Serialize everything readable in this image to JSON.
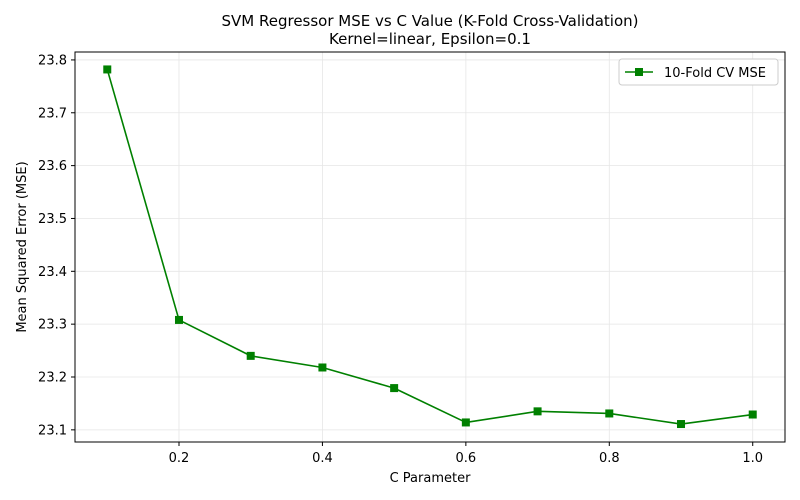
{
  "chart_data": {
    "type": "line",
    "title": "SVM Regressor MSE vs C Value (K-Fold Cross-Validation)",
    "subtitle": "Kernel=linear, Epsilon=0.1",
    "xlabel": "C Parameter",
    "ylabel": "Mean Squared Error (MSE)",
    "xlim": [
      0.055,
      1.045
    ],
    "ylim": [
      23.077,
      23.815
    ],
    "grid": true,
    "legend_position": "top-right",
    "x_ticks": [
      0.2,
      0.4,
      0.6,
      0.8,
      1.0
    ],
    "x_tick_labels": [
      "0.2",
      "0.4",
      "0.6",
      "0.8",
      "1.0"
    ],
    "y_ticks": [
      23.1,
      23.2,
      23.3,
      23.4,
      23.5,
      23.6,
      23.7,
      23.8
    ],
    "y_tick_labels": [
      "23.1",
      "23.2",
      "23.3",
      "23.4",
      "23.5",
      "23.6",
      "23.7",
      "23.8"
    ],
    "series": [
      {
        "name": "10-Fold CV MSE",
        "color": "#008000",
        "marker": "square",
        "x": [
          0.1,
          0.2,
          0.3,
          0.4,
          0.5,
          0.6,
          0.7,
          0.8,
          0.9,
          1.0
        ],
        "values": [
          23.782,
          23.308,
          23.24,
          23.218,
          23.179,
          23.114,
          23.135,
          23.131,
          23.111,
          23.129
        ]
      }
    ]
  }
}
